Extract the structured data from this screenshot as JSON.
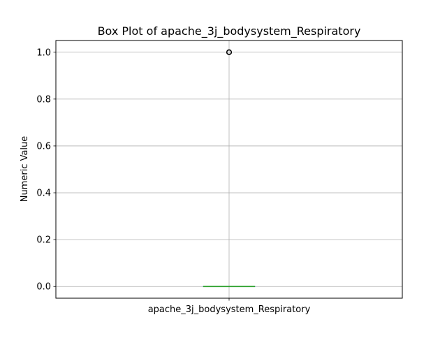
{
  "chart_data": {
    "type": "box",
    "title": "Box Plot of apache_3j_bodysystem_Respiratory",
    "xlabel": "",
    "ylabel": "Numeric Value",
    "categories": [
      "apache_3j_bodysystem_Respiratory"
    ],
    "ylim": [
      -0.05,
      1.05
    ],
    "yticks": [
      0.0,
      0.2,
      0.4,
      0.6,
      0.8,
      1.0
    ],
    "ytick_labels": [
      "0.0",
      "0.2",
      "0.4",
      "0.6",
      "0.8",
      "1.0"
    ],
    "grid": true,
    "boxes": [
      {
        "name": "apache_3j_bodysystem_Respiratory",
        "whisker_low": 0.0,
        "q1": 0.0,
        "median": 0.0,
        "q3": 0.0,
        "whisker_high": 0.0,
        "outliers": [
          1.0
        ]
      }
    ],
    "colors": {
      "box": "#1f77b4",
      "median": "#2ca02c",
      "grid": "#b0b0b0",
      "outlier": "#000000"
    }
  }
}
